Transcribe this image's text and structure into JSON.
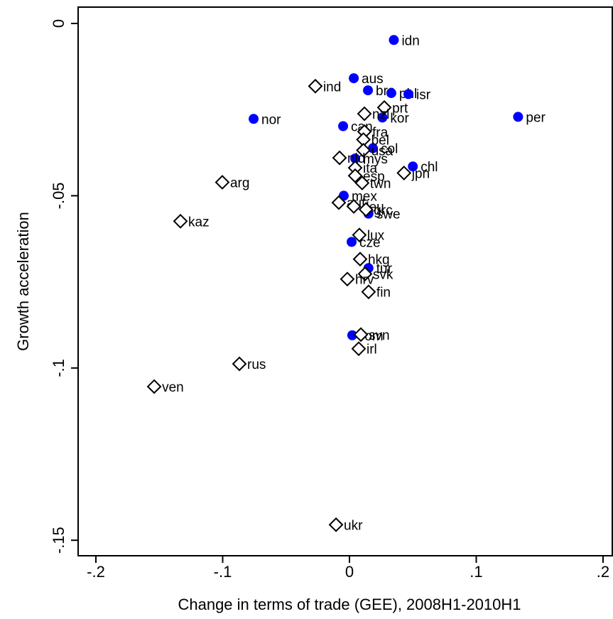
{
  "chart_data": {
    "type": "scatter",
    "x_label": "Change in terms of trade (GEE), 2008H1-2010H1",
    "y_label": "Growth acceleration",
    "xlim": [
      -0.214,
      0.2073
    ],
    "ylim": [
      0.00475,
      -0.1545
    ],
    "xticks": [
      {
        "value": -0.2,
        "label": "-.2"
      },
      {
        "value": -0.1,
        "label": "-.1"
      },
      0,
      {
        "value": 0.1,
        "label": ".1"
      },
      {
        "value": 0.2,
        "label": ".2"
      }
    ],
    "yticks": [
      0,
      {
        "value": -0.05,
        "label": "-.05"
      },
      {
        "value": -0.1,
        "label": "-.1"
      },
      {
        "value": -0.15,
        "label": "-.15"
      }
    ],
    "series": [
      {
        "marker": "circle",
        "color": "#0000ff",
        "labels": [
          "idn",
          "aus",
          "bra",
          "phl",
          "isr",
          "nor",
          "per",
          "can",
          "kor",
          "chl",
          "mys",
          "mex",
          "cze",
          "tur",
          "rom",
          "swe",
          "col"
        ],
        "x": [
          0.035,
          0.0034,
          0.0146,
          0.033,
          0.0465,
          -0.0756,
          0.133,
          -0.005,
          0.026,
          0.05,
          0.0045,
          -0.0045,
          0.0017,
          0.015,
          0.0022,
          0.015,
          0.0185
        ],
        "values": [
          -0.0048,
          -0.0159,
          -0.0194,
          -0.0202,
          -0.0205,
          -0.0277,
          -0.0271,
          -0.0298,
          -0.0273,
          -0.0415,
          -0.0392,
          -0.05,
          -0.0634,
          -0.071,
          -0.0905,
          -0.0552,
          -0.0362
        ]
      },
      {
        "marker": "diamond",
        "color": "#000000",
        "labels": [
          "ind",
          "arg",
          "kaz",
          "rus",
          "ven",
          "ukr",
          "prt",
          "nzl",
          "fra",
          "bel",
          "usa",
          "nld",
          "ita",
          "esp",
          "jpn",
          "twn",
          "aut",
          "deu",
          "grc",
          "lux",
          "hkg",
          "svk",
          "hrv",
          "fin",
          "svn",
          "irl"
        ],
        "x": [
          -0.0269,
          -0.1003,
          -0.1333,
          -0.0868,
          -0.154,
          -0.0106,
          0.0275,
          0.0118,
          0.0118,
          0.011,
          0.011,
          -0.0078,
          0.0045,
          0.0045,
          0.043,
          0.01,
          -0.0084,
          0.0034,
          0.013,
          0.0078,
          0.0084,
          0.0123,
          -0.0017,
          0.0151,
          0.009,
          0.0073
        ],
        "values": [
          -0.0182,
          -0.0461,
          -0.0574,
          -0.0988,
          -0.1054,
          -0.1455,
          -0.0244,
          -0.0262,
          -0.0314,
          -0.0337,
          -0.0368,
          -0.039,
          -0.0419,
          -0.0442,
          -0.0434,
          -0.0463,
          -0.052,
          -0.0531,
          -0.054,
          -0.0614,
          -0.0684,
          -0.0727,
          -0.0742,
          -0.0779,
          -0.0903,
          -0.0944
        ]
      }
    ]
  }
}
